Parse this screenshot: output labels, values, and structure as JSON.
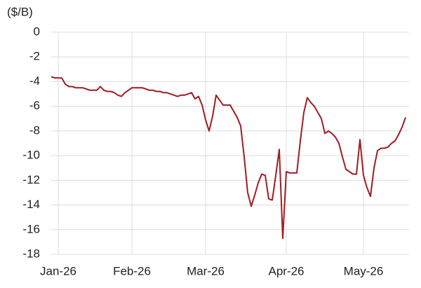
{
  "chart_data": {
    "type": "line",
    "y_label": "($/B)",
    "categories": [
      null,
      null,
      "Jan-26",
      null,
      null,
      null,
      null,
      null,
      null,
      null,
      null,
      null,
      null,
      null,
      null,
      null,
      null,
      null,
      null,
      null,
      null,
      null,
      null,
      "Feb-26",
      null,
      null,
      null,
      null,
      null,
      null,
      null,
      null,
      null,
      null,
      null,
      null,
      null,
      null,
      null,
      null,
      null,
      null,
      null,
      null,
      "Mar-26",
      null,
      null,
      null,
      null,
      null,
      null,
      null,
      null,
      null,
      null,
      null,
      null,
      null,
      null,
      null,
      null,
      null,
      null,
      null,
      null,
      null,
      null,
      "Apr-26",
      null,
      null,
      null,
      null,
      null,
      null,
      null,
      null,
      null,
      null,
      null,
      null,
      null,
      null,
      null,
      null,
      null,
      null,
      null,
      null,
      null,
      "May-26",
      null,
      null,
      null,
      null,
      null,
      null,
      null,
      null,
      null,
      null,
      null,
      null
    ],
    "values": [
      -3.6,
      -3.7,
      -3.7,
      -3.7,
      -4.2,
      -4.4,
      -4.4,
      -4.5,
      -4.5,
      -4.5,
      -4.6,
      -4.7,
      -4.7,
      -4.7,
      -4.4,
      -4.7,
      -4.8,
      -4.8,
      -4.9,
      -5.1,
      -5.2,
      -4.9,
      -4.7,
      -4.5,
      -4.5,
      -4.5,
      -4.5,
      -4.6,
      -4.7,
      -4.7,
      -4.8,
      -4.8,
      -4.9,
      -4.9,
      -5.0,
      -5.1,
      -5.2,
      -5.1,
      -5.1,
      -5.0,
      -4.9,
      -5.4,
      -5.2,
      -5.9,
      -7.1,
      -8.0,
      -6.8,
      -5.1,
      -5.5,
      -5.9,
      -5.9,
      -5.9,
      -6.4,
      -6.9,
      -7.6,
      -10.1,
      -13.0,
      -14.1,
      -13.2,
      -12.2,
      -11.5,
      -11.6,
      -13.5,
      -13.6,
      -11.6,
      -9.5,
      -16.7,
      -11.3,
      -11.4,
      -11.4,
      -11.4,
      -8.8,
      -6.5,
      -5.3,
      -5.7,
      -6.0,
      -6.5,
      -7.0,
      -8.2,
      -8.0,
      -8.2,
      -8.5,
      -9.0,
      -10.1,
      -11.1,
      -11.3,
      -11.5,
      -11.5,
      -8.7,
      -11.6,
      -12.6,
      -13.3,
      -11.0,
      -9.6,
      -9.4,
      -9.4,
      -9.3,
      -9.0,
      -8.8,
      -8.3,
      -7.7,
      -6.9
    ],
    "color": "#a01c22",
    "ylim": [
      -18,
      0
    ],
    "yticks": [
      0,
      -2,
      -4,
      -6,
      -8,
      -10,
      -12,
      -14,
      -16,
      -18
    ],
    "grid": true
  }
}
